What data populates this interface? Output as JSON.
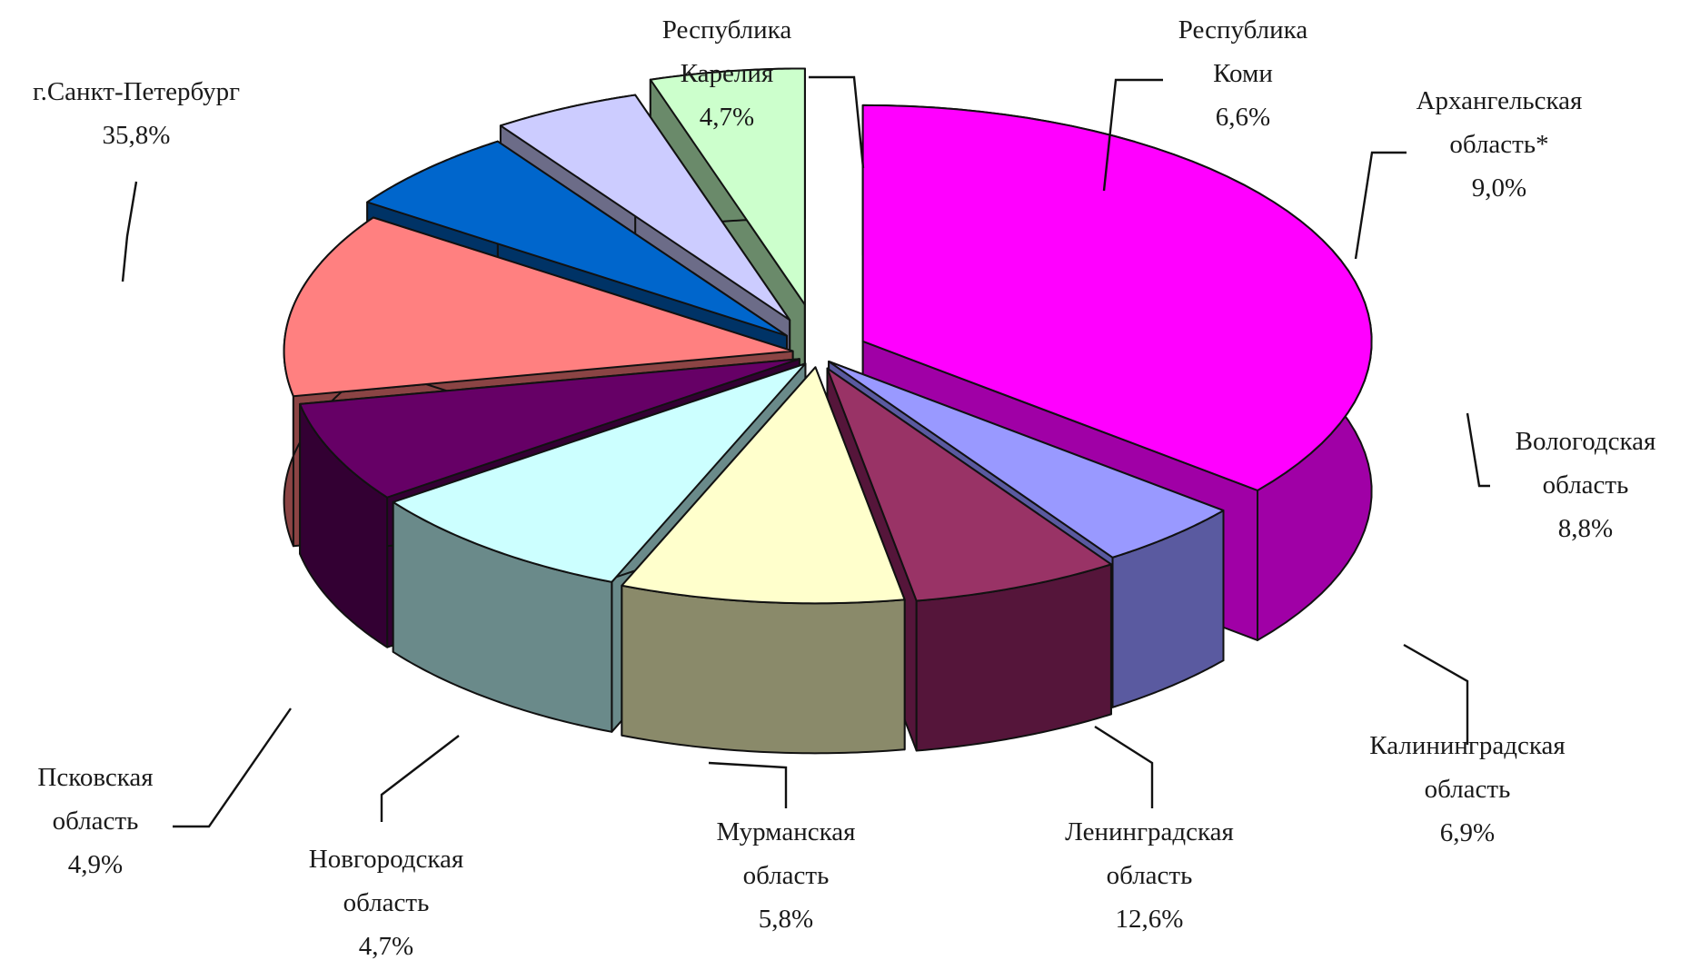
{
  "chart_data": {
    "type": "pie",
    "title": "",
    "exploded": true,
    "three_d": true,
    "slices": [
      {
        "label_lines": [
          "г.Санкт-Петербург"
        ],
        "value_text": "35,8%",
        "value": 35.8,
        "color": "#ff00ff",
        "dark": "#a000a6"
      },
      {
        "label_lines": [
          "Республика",
          "Карелия"
        ],
        "value_text": "4,7%",
        "value": 4.7,
        "color": "#9999ff",
        "dark": "#5a5aa0"
      },
      {
        "label_lines": [
          "Республика",
          "Коми"
        ],
        "value_text": "6,6%",
        "value": 6.6,
        "color": "#993366",
        "dark": "#55153a"
      },
      {
        "label_lines": [
          "Архангельская",
          "область*"
        ],
        "value_text": "9,0%",
        "value": 9.0,
        "color": "#ffffcc",
        "dark": "#8a8a6a"
      },
      {
        "label_lines": [
          "Вологодская",
          "область"
        ],
        "value_text": "8,8%",
        "value": 8.8,
        "color": "#ccffff",
        "dark": "#6a8a8a"
      },
      {
        "label_lines": [
          "Калининградская",
          "область"
        ],
        "value_text": "6,9%",
        "value": 6.9,
        "color": "#660066",
        "dark": "#330033"
      },
      {
        "label_lines": [
          "Ленинградская",
          "область"
        ],
        "value_text": "12,6%",
        "value": 12.6,
        "color": "#ff8080",
        "dark": "#8b4444"
      },
      {
        "label_lines": [
          "Мурманская",
          "область"
        ],
        "value_text": "5,8%",
        "value": 5.8,
        "color": "#0066cc",
        "dark": "#003366"
      },
      {
        "label_lines": [
          "Новгородская",
          "область"
        ],
        "value_text": "4,7%",
        "value": 4.7,
        "color": "#ccccff",
        "dark": "#6c6c88"
      },
      {
        "label_lines": [
          "Псковская",
          "область"
        ],
        "value_text": "4,9%",
        "value": 4.9,
        "color": "#ccffcc",
        "dark": "#6a8a6a"
      }
    ]
  }
}
